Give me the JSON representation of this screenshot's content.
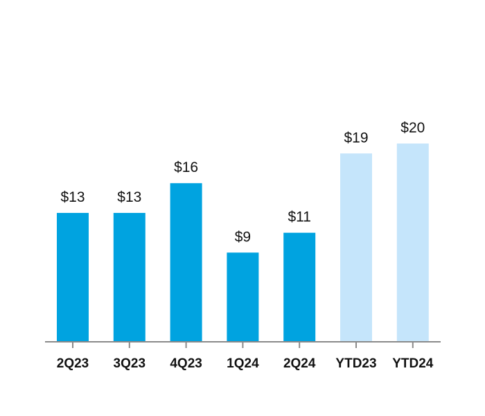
{
  "colors": {
    "quarterly": "#00a3e0",
    "ytd": "#c5e5fb",
    "axis": "#8a8a8a",
    "text": "#111111"
  },
  "chart_data": {
    "type": "bar",
    "title": "",
    "xlabel": "",
    "ylabel": "",
    "ylim": [
      0,
      20
    ],
    "grid": false,
    "categories": [
      "2Q23",
      "3Q23",
      "4Q23",
      "1Q24",
      "2Q24",
      "YTD23",
      "YTD24"
    ],
    "values": [
      13,
      13,
      16,
      9,
      11,
      19,
      20
    ],
    "value_labels": [
      "$13",
      "$13",
      "$16",
      "$9",
      "$11",
      "$19",
      "$20"
    ],
    "bar_groups": [
      "quarterly",
      "quarterly",
      "quarterly",
      "quarterly",
      "quarterly",
      "ytd",
      "ytd"
    ]
  }
}
